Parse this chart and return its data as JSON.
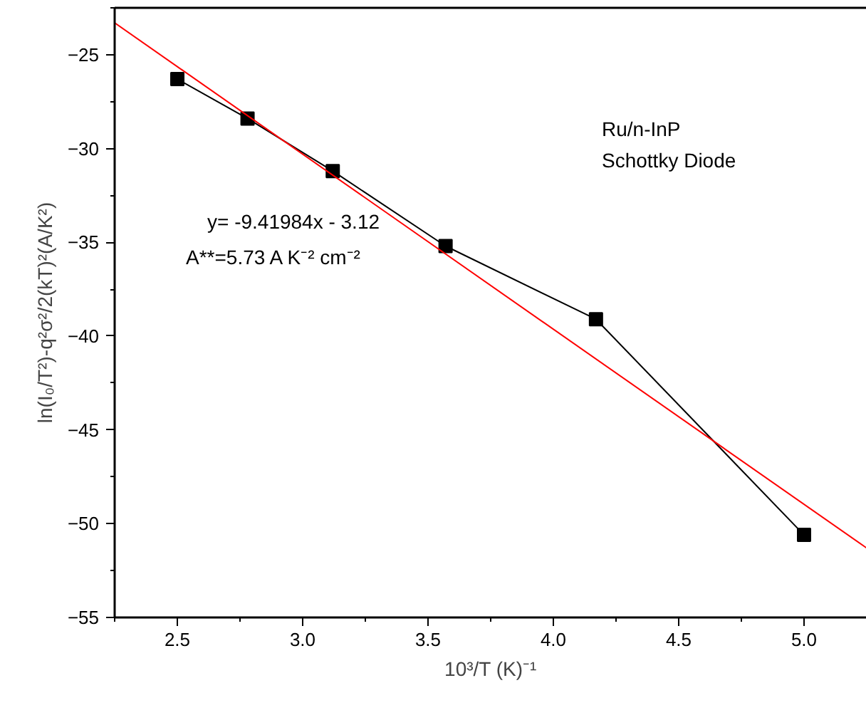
{
  "chart_data": {
    "type": "line",
    "xlabel": "10³/T (K)⁻¹",
    "ylabel": "ln(I₀/T²)-q²σ²/2(kT)²(A/K²)",
    "xlim": [
      2.25,
      5.25
    ],
    "xticks": [
      {
        "value": 2.5,
        "label": "2.5"
      },
      {
        "value": 3.0,
        "label": "3.0"
      },
      {
        "value": 3.5,
        "label": "3.5"
      },
      {
        "value": 4.0,
        "label": "4.0"
      },
      {
        "value": 4.5,
        "label": "4.5"
      },
      {
        "value": 5.0,
        "label": "5.0"
      }
    ],
    "ylim": [
      -55,
      -22.5
    ],
    "yticks": [
      -55,
      -50,
      -45,
      -40,
      -35,
      -30,
      -25
    ],
    "x": [
      2.5,
      2.78,
      3.12,
      3.57,
      4.17,
      5.0
    ],
    "series": [
      {
        "color": "#000000",
        "marker": "square",
        "values": [
          -26.3,
          -28.4,
          -31.2,
          -35.2,
          -39.1,
          -50.6
        ]
      },
      {
        "type": "line",
        "color": "#ff0000",
        "marker": "none",
        "x": [
          2.25,
          5.25
        ],
        "values": [
          -23.3,
          -51.3
        ]
      }
    ],
    "annotations": [
      "Ru/n-InP",
      "Schottky Diode",
      "y= -9.41984x - 3.12",
      "A**=5.73 A K⁻² cm⁻²"
    ],
    "grid": false
  }
}
